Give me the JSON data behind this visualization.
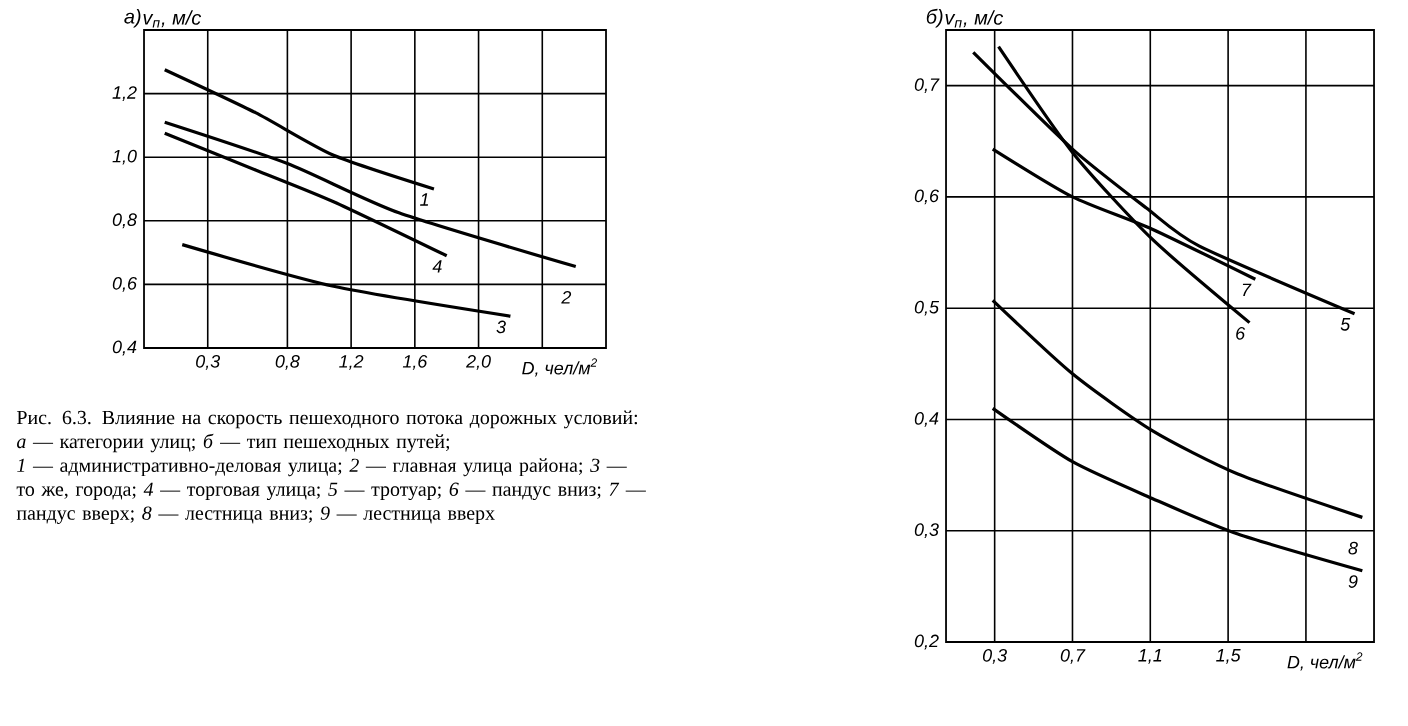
{
  "chart_data": [
    {
      "type": "line",
      "title": "а)",
      "ylabel": "*v*$_{п}$, м/с",
      "xlabel": "D, чел/м$^{2}$",
      "grid": true,
      "xlim": [
        -0.1,
        2.8
      ],
      "ylim": [
        0.4,
        1.4
      ],
      "xticks": [
        {
          "value": 0.3,
          "label": "0,3"
        },
        {
          "value": 0.8,
          "label": "0,8"
        },
        {
          "value": 1.2,
          "label": "1,2"
        },
        {
          "value": 1.6,
          "label": "1,6"
        },
        {
          "value": 2.0,
          "label": "2,0"
        },
        {
          "value": 2.4,
          "label": null
        }
      ],
      "yticks": [
        {
          "value": 0.4,
          "label": "0,4"
        },
        {
          "value": 0.6,
          "label": "0,6"
        },
        {
          "value": 0.8,
          "label": "0,8"
        },
        {
          "value": 1.0,
          "label": "1,0"
        },
        {
          "value": 1.2,
          "label": "1,2"
        }
      ],
      "series": [
        {
          "name": "1",
          "color": "#000000",
          "x": [
            0.03,
            0.6,
            1.09,
            1.72
          ],
          "values": [
            1.275,
            1.14,
            1.006,
            0.9
          ]
        },
        {
          "name": "2",
          "color": "#000000",
          "x": [
            0.03,
            0.8,
            1.5,
            2.61
          ],
          "values": [
            1.11,
            0.98,
            0.825,
            0.656
          ]
        },
        {
          "name": "3",
          "color": "#000000",
          "x": [
            0.14,
            1.09,
            2.2
          ],
          "values": [
            0.725,
            0.594,
            0.5
          ]
        },
        {
          "name": "4",
          "color": "#000000",
          "x": [
            0.03,
            0.6,
            1.09,
            1.8
          ],
          "values": [
            1.075,
            0.96,
            0.86,
            0.69
          ]
        }
      ],
      "annotations": [
        "Рис. 6.3. Влияние на скорость пешеходного потока дорожных условий:",
        "*а* — категории улиц; *б* — тип пешеходных путей;",
        "*1* — административно-деловая улица; *2* — главная улица района; *3* — то же, города; *4* — торговая улица; *5* — тротуар; *6* — пандус вниз; *7* — пандус вверх; *8* — лестница вниз; *9* — лестница вверх"
      ]
    },
    {
      "type": "line",
      "title": "б)",
      "ylabel": "*v*$_{п}$, м/с",
      "xlabel": "D, чел/м$^{2}$",
      "grid": true,
      "xlim": [
        0.05,
        2.25
      ],
      "ylim": [
        0.2,
        0.75
      ],
      "xticks": [
        {
          "value": 0.3,
          "label": "0,3"
        },
        {
          "value": 0.7,
          "label": "0,7"
        },
        {
          "value": 1.1,
          "label": "1,1"
        },
        {
          "value": 1.5,
          "label": "1,5"
        },
        {
          "value": 1.9,
          "label": null
        }
      ],
      "yticks": [
        {
          "value": 0.2,
          "label": "0,2"
        },
        {
          "value": 0.3,
          "label": "0,3"
        },
        {
          "value": 0.4,
          "label": "0,4"
        },
        {
          "value": 0.5,
          "label": "0,5"
        },
        {
          "value": 0.6,
          "label": "0,6"
        },
        {
          "value": 0.7,
          "label": "0,7"
        }
      ],
      "series": [
        {
          "name": "5",
          "color": "#000000",
          "x": [
            0.19,
            0.7,
            1.08,
            1.35,
            2.15
          ],
          "values": [
            0.73,
            0.643,
            0.59,
            0.556,
            0.495
          ]
        },
        {
          "name": "6",
          "color": "#000000",
          "x": [
            0.32,
            0.7,
            1.11,
            1.61
          ],
          "values": [
            0.735,
            0.64,
            0.562,
            0.487
          ]
        },
        {
          "name": "7",
          "color": "#000000",
          "x": [
            0.29,
            0.7,
            1.11,
            1.64
          ],
          "values": [
            0.643,
            0.6,
            0.571,
            0.526
          ]
        },
        {
          "name": "8",
          "color": "#000000",
          "x": [
            0.29,
            0.7,
            1.11,
            1.55,
            2.19
          ],
          "values": [
            0.507,
            0.441,
            0.39,
            0.351,
            0.312
          ]
        },
        {
          "name": "9",
          "color": "#000000",
          "x": [
            0.29,
            0.7,
            1.11,
            1.55,
            2.19
          ],
          "values": [
            0.41,
            0.362,
            0.329,
            0.297,
            0.264
          ]
        }
      ]
    }
  ]
}
